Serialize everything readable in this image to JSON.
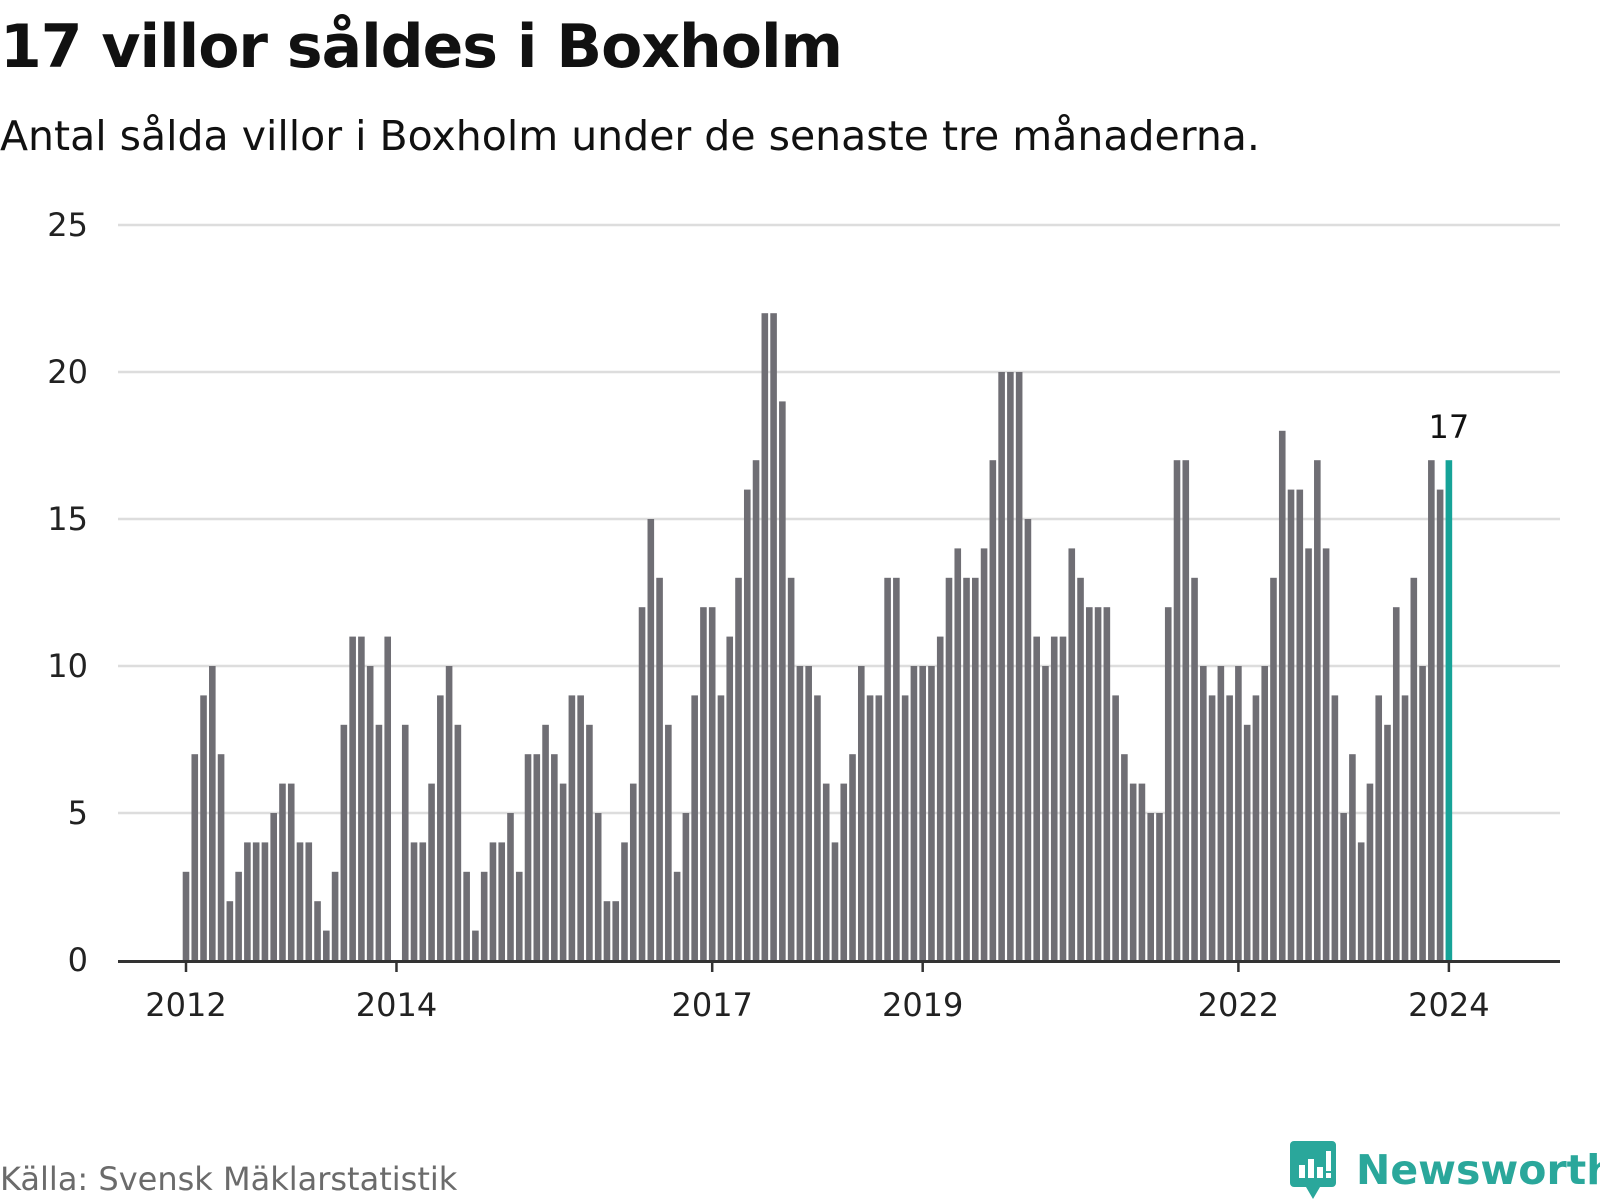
{
  "title": "17 villor såldes i Boxholm",
  "subtitle": "Antal sålda villor i Boxholm under de senaste tre månaderna.",
  "source": "Källa: Svensk Mäklarstatistik",
  "brand": "Newsworthy",
  "colors": {
    "bar": "#6f6e74",
    "highlight": "#16a398",
    "grid": "#dddddd",
    "axis": "#333333",
    "brand": "#2aa79b"
  },
  "chart_data": {
    "type": "bar",
    "title": "17 villor såldes i Boxholm",
    "xlabel": "",
    "ylabel": "",
    "ylim": [
      0,
      25
    ],
    "yticks": [
      0,
      5,
      10,
      15,
      20,
      25
    ],
    "grid": true,
    "x_start": "2012-01",
    "x_end": "2024-01",
    "xticks": [
      "2012",
      "2014",
      "2017",
      "2019",
      "2022",
      "2024"
    ],
    "xtick_month_index": [
      0,
      24,
      60,
      84,
      120,
      144
    ],
    "highlight_label": "17",
    "values": [
      3,
      7,
      9,
      10,
      7,
      2,
      3,
      4,
      4,
      4,
      5,
      6,
      6,
      4,
      4,
      2,
      1,
      3,
      8,
      11,
      11,
      10,
      8,
      11,
      0,
      8,
      4,
      4,
      6,
      9,
      10,
      8,
      3,
      1,
      3,
      4,
      4,
      5,
      3,
      7,
      7,
      8,
      7,
      6,
      9,
      9,
      8,
      5,
      2,
      2,
      4,
      6,
      12,
      15,
      13,
      8,
      3,
      5,
      9,
      12,
      12,
      9,
      11,
      13,
      16,
      17,
      22,
      22,
      19,
      13,
      10,
      10,
      9,
      6,
      4,
      6,
      7,
      10,
      9,
      9,
      13,
      13,
      9,
      10,
      10,
      10,
      11,
      13,
      14,
      13,
      13,
      14,
      17,
      20,
      20,
      20,
      15,
      11,
      10,
      11,
      11,
      14,
      13,
      12,
      12,
      12,
      9,
      7,
      6,
      6,
      5,
      5,
      12,
      17,
      17,
      13,
      10,
      9,
      10,
      9,
      10,
      8,
      9,
      10,
      13,
      18,
      16,
      16,
      14,
      17,
      14,
      9,
      5,
      7,
      4,
      6,
      9,
      8,
      12,
      9,
      13,
      10,
      17,
      16,
      17
    ]
  }
}
